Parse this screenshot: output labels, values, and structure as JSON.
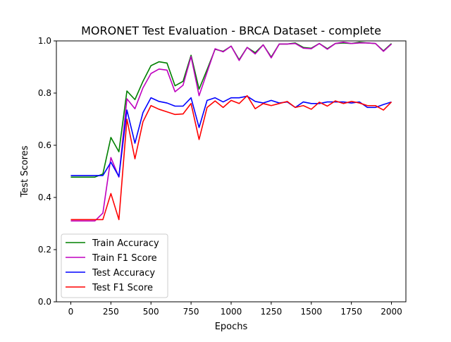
{
  "chart_data": {
    "type": "line",
    "title": "MORONET Test Evaluation - BRCA Dataset - complete",
    "xlabel": "Epochs",
    "ylabel": "Test Scores",
    "xlim": [
      -90,
      2090
    ],
    "ylim": [
      0.0,
      1.0
    ],
    "xticks": [
      0,
      250,
      500,
      750,
      1000,
      1250,
      1500,
      1750,
      2000
    ],
    "yticks": [
      0.0,
      0.2,
      0.4,
      0.6,
      0.8,
      1.0
    ],
    "xtick_labels": [
      "0",
      "250",
      "500",
      "750",
      "1000",
      "1250",
      "1500",
      "1750",
      "2000"
    ],
    "ytick_labels": [
      "0.0",
      "0.2",
      "0.4",
      "0.6",
      "0.8",
      "1.0"
    ],
    "grid": false,
    "legend_position": "lower-left",
    "x": [
      0,
      50,
      100,
      150,
      200,
      250,
      300,
      350,
      400,
      450,
      500,
      550,
      600,
      650,
      700,
      750,
      800,
      850,
      900,
      950,
      1000,
      1050,
      1100,
      1150,
      1200,
      1250,
      1300,
      1350,
      1400,
      1450,
      1500,
      1550,
      1600,
      1650,
      1700,
      1750,
      1800,
      1850,
      1900,
      1950,
      2000
    ],
    "series": [
      {
        "name": "Train Accuracy",
        "color": "#008000",
        "values": [
          0.478,
          0.478,
          0.478,
          0.478,
          0.49,
          0.63,
          0.575,
          0.808,
          0.775,
          0.845,
          0.905,
          0.92,
          0.915,
          0.828,
          0.845,
          0.945,
          0.815,
          0.89,
          0.968,
          0.96,
          0.98,
          0.928,
          0.975,
          0.955,
          0.985,
          0.938,
          0.988,
          0.988,
          0.992,
          0.975,
          0.972,
          0.99,
          0.97,
          0.99,
          0.992,
          0.99,
          0.995,
          0.992,
          0.99,
          0.962,
          0.99
        ]
      },
      {
        "name": "Train F1 Score",
        "color": "#bf00bf",
        "values": [
          0.31,
          0.31,
          0.31,
          0.31,
          0.34,
          0.553,
          0.478,
          0.778,
          0.74,
          0.82,
          0.875,
          0.892,
          0.888,
          0.805,
          0.83,
          0.94,
          0.79,
          0.88,
          0.97,
          0.958,
          0.98,
          0.925,
          0.975,
          0.95,
          0.985,
          0.935,
          0.988,
          0.988,
          0.99,
          0.972,
          0.97,
          0.99,
          0.968,
          0.99,
          0.995,
          0.99,
          0.992,
          0.992,
          0.99,
          0.96,
          0.988
        ]
      },
      {
        "name": "Test Accuracy",
        "color": "#0000ff",
        "values": [
          0.484,
          0.484,
          0.484,
          0.484,
          0.484,
          0.535,
          0.48,
          0.735,
          0.608,
          0.725,
          0.782,
          0.768,
          0.762,
          0.75,
          0.75,
          0.782,
          0.668,
          0.772,
          0.782,
          0.766,
          0.782,
          0.782,
          0.788,
          0.768,
          0.762,
          0.772,
          0.762,
          0.766,
          0.745,
          0.766,
          0.76,
          0.76,
          0.766,
          0.766,
          0.766,
          0.762,
          0.766,
          0.745,
          0.745,
          0.756,
          0.766
        ]
      },
      {
        "name": "Test F1 Score",
        "color": "#ff0000",
        "values": [
          0.315,
          0.315,
          0.315,
          0.315,
          0.315,
          0.415,
          0.315,
          0.7,
          0.548,
          0.69,
          0.752,
          0.738,
          0.728,
          0.718,
          0.72,
          0.76,
          0.622,
          0.745,
          0.77,
          0.745,
          0.772,
          0.76,
          0.79,
          0.74,
          0.76,
          0.752,
          0.76,
          0.768,
          0.745,
          0.752,
          0.738,
          0.765,
          0.75,
          0.77,
          0.76,
          0.768,
          0.762,
          0.752,
          0.752,
          0.735,
          0.766
        ]
      }
    ]
  }
}
